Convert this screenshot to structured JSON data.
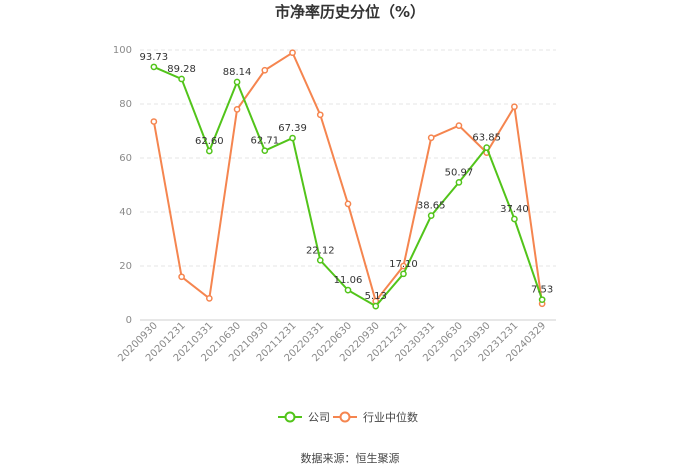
{
  "chart_data": {
    "type": "line",
    "title": "市净率历史分位（%）",
    "xlabel": "",
    "ylabel": "",
    "ylim": [
      0,
      100
    ],
    "yticks": [
      0,
      20,
      40,
      60,
      80,
      100
    ],
    "grid": true,
    "legend_position": "bottom",
    "categories": [
      "20200930",
      "20201231",
      "20210331",
      "20210630",
      "20210930",
      "20211231",
      "20220331",
      "20220630",
      "20220930",
      "20221231",
      "20230331",
      "20230630",
      "20230930",
      "20231231",
      "20240329"
    ],
    "series": [
      {
        "name": "公司",
        "color": "#52c41a",
        "values": [
          93.73,
          89.28,
          62.6,
          88.14,
          62.71,
          67.39,
          22.12,
          11.06,
          5.13,
          17.1,
          38.65,
          50.97,
          63.85,
          37.4,
          7.53
        ],
        "labels": [
          "93.73",
          "89.28",
          "62.60",
          "88.14",
          "62.71",
          "67.39",
          "22.12",
          "11.06",
          "5.13",
          "17.10",
          "38.65",
          "50.97",
          "63.85",
          "37.40",
          "7.53"
        ]
      },
      {
        "name": "行业中位数",
        "color": "#f5854f",
        "values": [
          73.5,
          16,
          8,
          78,
          92.5,
          99,
          76,
          43,
          7,
          20,
          67.5,
          72,
          62,
          79,
          6
        ],
        "labels": []
      }
    ]
  },
  "footer": {
    "source": "数据来源：恒生聚源"
  }
}
